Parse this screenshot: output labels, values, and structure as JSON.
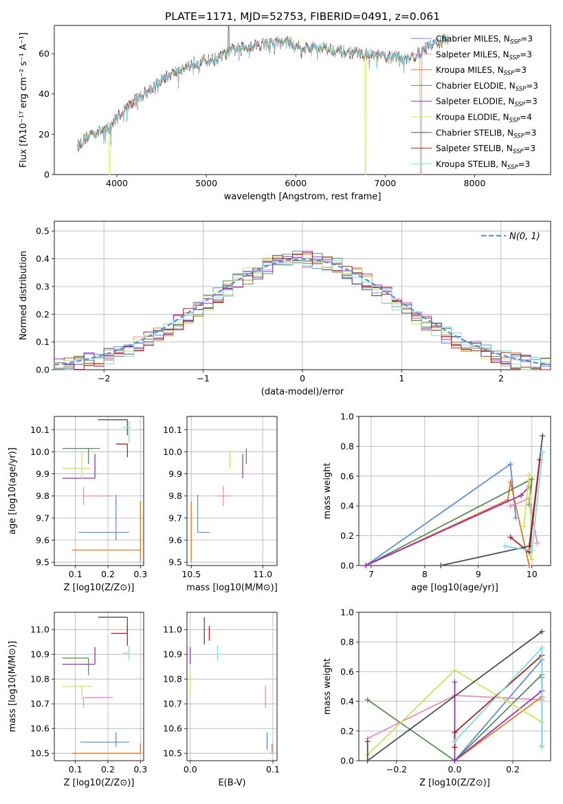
{
  "figure_title": "PLATE=1171, MJD=52753, FIBERID=0491, z=0.061",
  "series_colors": [
    "#5f8ed8",
    "#e48bbf",
    "#e2781f",
    "#5c8a5c",
    "#9a2fb8",
    "#cfe35a",
    "#4d4d4d",
    "#b01c1c",
    "#79dde8"
  ],
  "chart_data": [
    {
      "id": "spectrum",
      "type": "line",
      "title": "PLATE=1171, MJD=52753, FIBERID=0491, z=0.061",
      "xlabel": "wavelength [Angstrom, rest frame]",
      "ylabel": "Flux [fλ10⁻¹⁷ erg cm⁻² s⁻¹ A⁻¹]",
      "xlim": [
        3300,
        8850
      ],
      "ylim": [
        0,
        74
      ],
      "xticks": [
        4000,
        5000,
        6000,
        7000,
        8000
      ],
      "yticks": [
        0,
        20,
        40,
        60
      ],
      "grid": false,
      "legend_position": "right",
      "continuum_x": [
        3560,
        3700,
        3900,
        4100,
        4300,
        4500,
        4700,
        4900,
        5100,
        5300,
        5500,
        5700,
        5900,
        6100,
        6300,
        6500,
        6700,
        6900,
        7100,
        7300,
        7500,
        7700
      ],
      "continuum_y": [
        14,
        20,
        23,
        33,
        40,
        47,
        52,
        56,
        57,
        62,
        64,
        65,
        66,
        63,
        63,
        61,
        60,
        59,
        58,
        58,
        64,
        67
      ],
      "series": [
        {
          "name": "Chabrier MILES, N_SSP=3"
        },
        {
          "name": "Salpeter MILES, N_SSP=3"
        },
        {
          "name": "Kroupa MILES, N_SSP=3"
        },
        {
          "name": "Chabrier ELODIE, N_SSP=3"
        },
        {
          "name": "Salpeter ELODIE, N_SSP=3"
        },
        {
          "name": "Kroupa ELODIE, N_SSP=4"
        },
        {
          "name": "Chabrier STELIB, N_SSP=3"
        },
        {
          "name": "Salpeter STELIB, N_SSP=3"
        },
        {
          "name": "Kroupa STELIB, N_SSP=3"
        }
      ],
      "legend_labels": [
        [
          "Chabrier MILES, N",
          "SSP",
          "=3"
        ],
        [
          "Salpeter MILES, N",
          "SSP",
          "=3"
        ],
        [
          "Kroupa MILES, N",
          "SSP",
          "=3"
        ],
        [
          "Chabrier ELODIE, N",
          "SSP",
          "=3"
        ],
        [
          "Salpeter ELODIE, N",
          "SSP",
          "=3"
        ],
        [
          "Kroupa ELODIE, N",
          "SSP",
          "=4"
        ],
        [
          "Chabrier STELIB, N",
          "SSP",
          "=3"
        ],
        [
          "Salpeter STELIB, N",
          "SSP",
          "=3"
        ],
        [
          "Kroupa STELIB, N",
          "SSP",
          "=3"
        ]
      ]
    },
    {
      "id": "residuals",
      "type": "bar",
      "xlabel": "(data-model)/error",
      "ylabel": "Normed distribution",
      "xlim": [
        -2.5,
        2.5
      ],
      "ylim": [
        0,
        0.535
      ],
      "xticks": [
        -2,
        -1,
        0,
        1,
        2
      ],
      "xtick_labels": [
        "−2",
        "−1",
        "0",
        "1",
        "2"
      ],
      "yticks": [
        0,
        0.1,
        0.2,
        0.3,
        0.4,
        0.5
      ],
      "ytick_labels": [
        "0.0",
        "0.1",
        "0.2",
        "0.3",
        "0.4",
        "0.5"
      ],
      "grid": true,
      "bin_width": 0.1,
      "curve_label": "N(0, 1)",
      "legend_position": "upper right"
    },
    {
      "id": "age_vs_Z",
      "type": "scatter",
      "xlabel": "Z [log10(Z/Z⊙)]",
      "ylabel": "age [log10(age/yr)]",
      "xlim": [
        0.035,
        0.31
      ],
      "ylim": [
        9.485,
        10.16
      ],
      "xticks": [
        0.1,
        0.2,
        0.3
      ],
      "xtick_labels": [
        "0.1",
        "0.2",
        "0.3"
      ],
      "yticks": [
        9.5,
        9.6,
        9.7,
        9.8,
        9.9,
        10.0,
        10.1
      ],
      "ytick_labels": [
        "9.5",
        "9.6",
        "9.7",
        "9.8",
        "9.9",
        "10.0",
        "10.1"
      ],
      "grid": true,
      "points": [
        {
          "x": 0.225,
          "y": 9.635,
          "xerr": [
            0.115,
            0.04
          ],
          "yerr": [
            0.035,
            0.17
          ]
        },
        {
          "x": 0.125,
          "y": 9.8,
          "xerr": [
            0.0,
            0.09
          ],
          "yerr": [
            0.04,
            0.04
          ]
        },
        {
          "x": 0.3,
          "y": 9.555,
          "xerr": [
            0.21,
            0.0
          ],
          "yerr": [
            0.05,
            0.22
          ]
        },
        {
          "x": 0.14,
          "y": 10.015,
          "xerr": [
            0.08,
            0.035
          ],
          "yerr": [
            0.07,
            0.0
          ]
        },
        {
          "x": 0.16,
          "y": 9.88,
          "xerr": [
            0.1,
            0.0
          ],
          "yerr": [
            0.0,
            0.11
          ]
        },
        {
          "x": 0.12,
          "y": 9.925,
          "xerr": [
            0.06,
            0.025
          ],
          "yerr": [
            0.05,
            0.08
          ]
        },
        {
          "x": 0.26,
          "y": 10.145,
          "xerr": [
            0.09,
            0.0
          ],
          "yerr": [
            0.07,
            0.0
          ]
        },
        {
          "x": 0.26,
          "y": 10.035,
          "xerr": [
            0.035,
            0.0
          ],
          "yerr": [
            0.06,
            0.0
          ]
        },
        {
          "x": 0.265,
          "y": 10.11,
          "xerr": [
            0.02,
            0.005
          ],
          "yerr": [
            0.07,
            0.03
          ]
        }
      ]
    },
    {
      "id": "age_vs_mass",
      "type": "scatter",
      "xlabel": "mass [log10(M/M⊙)]",
      "xlim": [
        10.47,
        11.1
      ],
      "ylim": [
        9.485,
        10.16
      ],
      "xticks": [
        10.5,
        11.0
      ],
      "xtick_labels": [
        "10.5",
        "11.0"
      ],
      "yticks": [
        9.5,
        9.6,
        9.7,
        9.8,
        9.9,
        10.0,
        10.1
      ],
      "ytick_labels": [
        "9.5",
        "9.6",
        "9.7",
        "9.8",
        "9.9",
        "10.0",
        "10.1"
      ],
      "grid": true,
      "points": [
        {
          "x": 10.545,
          "y": 9.635,
          "xerr": [
            0.0,
            0.085
          ],
          "yerr": [
            0.0,
            0.17
          ]
        },
        {
          "x": 10.725,
          "y": 9.8,
          "xerr": [
            0.05,
            0.05
          ],
          "yerr": [
            0.045,
            0.045
          ]
        },
        {
          "x": 10.5,
          "y": 9.555,
          "xerr": [
            0.0,
            0.0
          ],
          "yerr": [
            0.05,
            0.22
          ]
        },
        {
          "x": 10.885,
          "y": 10.015,
          "xerr": [
            0.0,
            0.0
          ],
          "yerr": [
            0.07,
            0.0
          ]
        },
        {
          "x": 10.86,
          "y": 9.88,
          "xerr": [
            0.0,
            0.0
          ],
          "yerr": [
            0.0,
            0.11
          ]
        },
        {
          "x": 10.77,
          "y": 9.925,
          "xerr": [
            0.0,
            0.0
          ],
          "yerr": [
            0.0,
            0.08
          ]
        },
        {
          "x": 11.05,
          "y": 10.145,
          "xerr": [
            0.0,
            0.0
          ],
          "yerr": [
            0.0,
            0.0
          ]
        },
        {
          "x": 10.985,
          "y": 10.035,
          "xerr": [
            0.0,
            0.0
          ],
          "yerr": [
            0.0,
            0.0
          ]
        },
        {
          "x": 10.905,
          "y": 10.11,
          "xerr": [
            0.0,
            0.0
          ],
          "yerr": [
            0.0,
            0.0
          ]
        }
      ]
    },
    {
      "id": "weight_vs_age",
      "type": "line",
      "xlabel": "age  [log10(age/yr)]",
      "ylabel": "mass weight",
      "xlim": [
        6.77,
        10.35
      ],
      "ylim": [
        0,
        1.0
      ],
      "xticks": [
        7,
        8,
        9,
        10
      ],
      "xtick_labels": [
        "7",
        "8",
        "9",
        "10"
      ],
      "yticks": [
        0,
        0.2,
        0.4,
        0.6,
        0.8,
        1.0
      ],
      "ytick_labels": [
        "0.0",
        "0.2",
        "0.4",
        "0.6",
        "0.8",
        "1.0"
      ],
      "grid": true,
      "series": [
        {
          "x": [
            6.9,
            9.6,
            9.7
          ],
          "y": [
            0.0,
            0.68,
            0.32
          ]
        },
        {
          "x": [
            9.6,
            9.95,
            10.1
          ],
          "y": [
            0.4,
            0.45,
            0.15
          ]
        },
        {
          "x": [
            6.9,
            9.55,
            9.6,
            9.95
          ],
          "y": [
            0.0,
            0.44,
            0.56,
            0.0
          ]
        },
        {
          "x": [
            6.9,
            10.0,
            9.95
          ],
          "y": [
            0.0,
            0.58,
            0.41
          ]
        },
        {
          "x": [
            6.9,
            9.8,
            9.95
          ],
          "y": [
            0.0,
            0.47,
            0.53
          ]
        },
        {
          "x": [
            9.85,
            9.95,
            10.0,
            9.95
          ],
          "y": [
            0.26,
            0.61,
            0.04,
            0.09
          ]
        },
        {
          "x": [
            8.3,
            9.95,
            10.2
          ],
          "y": [
            0.0,
            0.13,
            0.87
          ]
        },
        {
          "x": [
            9.6,
            9.95,
            10.15
          ],
          "y": [
            0.19,
            0.09,
            0.71
          ]
        },
        {
          "x": [
            9.5,
            10.0,
            10.2
          ],
          "y": [
            0.13,
            0.1,
            0.76
          ]
        }
      ]
    },
    {
      "id": "mass_vs_Z",
      "type": "scatter",
      "xlabel": "Z [log10(Z/Z⊙)]",
      "ylabel": "mass [log10(M/M⊙)]",
      "xlim": [
        0.035,
        0.31
      ],
      "ylim": [
        10.47,
        11.07
      ],
      "xticks": [
        0.1,
        0.2,
        0.3
      ],
      "xtick_labels": [
        "0.1",
        "0.2",
        "0.3"
      ],
      "yticks": [
        10.5,
        10.6,
        10.7,
        10.8,
        10.9,
        11.0
      ],
      "ytick_labels": [
        "10.5",
        "10.6",
        "10.7",
        "10.8",
        "10.9",
        "11.0"
      ],
      "grid": true,
      "points": [
        {
          "x": 0.225,
          "y": 10.545,
          "xerr": [
            0.11,
            0.04
          ],
          "yerr": [
            0.02,
            0.04
          ]
        },
        {
          "x": 0.125,
          "y": 10.725,
          "xerr": [
            0.0,
            0.09
          ],
          "yerr": [
            0.04,
            0.0
          ]
        },
        {
          "x": 0.3,
          "y": 10.5,
          "xerr": [
            0.21,
            0.0
          ],
          "yerr": [
            0.0,
            0.04
          ]
        },
        {
          "x": 0.14,
          "y": 10.885,
          "xerr": [
            0.08,
            0.0
          ],
          "yerr": [
            0.07,
            0.0
          ]
        },
        {
          "x": 0.16,
          "y": 10.86,
          "xerr": [
            0.1,
            0.0
          ],
          "yerr": [
            0.0,
            0.07
          ]
        },
        {
          "x": 0.12,
          "y": 10.77,
          "xerr": [
            0.06,
            0.03
          ],
          "yerr": [
            0.05,
            0.0
          ]
        },
        {
          "x": 0.26,
          "y": 11.05,
          "xerr": [
            0.09,
            0.0
          ],
          "yerr": [
            0.06,
            0.0
          ]
        },
        {
          "x": 0.26,
          "y": 10.985,
          "xerr": [
            0.05,
            0.0
          ],
          "yerr": [
            0.05,
            0.03
          ]
        },
        {
          "x": 0.265,
          "y": 10.905,
          "xerr": [
            0.02,
            0.0
          ],
          "yerr": [
            0.03,
            0.03
          ]
        }
      ]
    },
    {
      "id": "mass_vs_ebv",
      "type": "scatter",
      "xlabel": "E(B-V)",
      "xlim": [
        -0.004,
        0.105
      ],
      "ylim": [
        10.47,
        11.07
      ],
      "xticks": [
        0.0,
        0.1
      ],
      "xtick_labels": [
        "0.0",
        "0.1"
      ],
      "yticks": [
        10.5,
        10.6,
        10.7,
        10.8,
        10.9,
        11.0
      ],
      "ytick_labels": [
        "10.5",
        "10.6",
        "10.7",
        "10.8",
        "10.9",
        "11.0"
      ],
      "grid": true,
      "points": [
        {
          "x": 0.093,
          "y": 10.545,
          "xerr": [
            0.0,
            0.0
          ],
          "yerr": [
            0.03,
            0.04
          ]
        },
        {
          "x": 0.091,
          "y": 10.725,
          "xerr": [
            0.0,
            0.0
          ],
          "yerr": [
            0.04,
            0.05
          ]
        },
        {
          "x": 0.099,
          "y": 10.5,
          "xerr": [
            0.0,
            0.0
          ],
          "yerr": [
            0.0,
            0.04
          ]
        },
        {
          "x": 0.0,
          "y": 10.885,
          "xerr": [
            0.0,
            0.0
          ],
          "yerr": [
            0.0,
            0.0
          ]
        },
        {
          "x": 0.0,
          "y": 10.86,
          "xerr": [
            0.0,
            0.0
          ],
          "yerr": [
            0.0,
            0.07
          ]
        },
        {
          "x": 0.0,
          "y": 10.77,
          "xerr": [
            0.0,
            0.0
          ],
          "yerr": [
            0.03,
            0.06
          ]
        },
        {
          "x": 0.017,
          "y": 11.0,
          "xerr": [
            0.0,
            0.0
          ],
          "yerr": [
            0.06,
            0.05
          ]
        },
        {
          "x": 0.023,
          "y": 10.985,
          "xerr": [
            0.0,
            0.0
          ],
          "yerr": [
            0.03,
            0.03
          ]
        },
        {
          "x": 0.033,
          "y": 10.905,
          "xerr": [
            0.0,
            0.0
          ],
          "yerr": [
            0.03,
            0.03
          ]
        }
      ]
    },
    {
      "id": "weight_vs_Z",
      "type": "line",
      "xlabel": "Z [log10(Z/Z⊙)]",
      "ylabel": "mass weight",
      "xlim": [
        -0.33,
        0.33
      ],
      "ylim": [
        0,
        1.0
      ],
      "xticks": [
        -0.2,
        0.0,
        0.2
      ],
      "xtick_labels": [
        "−0.2",
        "0.0",
        "0.2"
      ],
      "yticks": [
        0,
        0.2,
        0.4,
        0.6,
        0.8,
        1.0
      ],
      "ytick_labels": [
        "0.0",
        "0.2",
        "0.4",
        "0.6",
        "0.8",
        "1.0"
      ],
      "grid": true,
      "series": [
        {
          "x": [
            0.0,
            0.3,
            0.3
          ],
          "y": [
            0.0,
            0.68,
            0.1
          ]
        },
        {
          "x": [
            -0.3,
            0.0,
            0.3
          ],
          "y": [
            0.15,
            0.44,
            0.41
          ]
        },
        {
          "x": [
            0.0,
            0.3,
            0.3
          ],
          "y": [
            0.0,
            0.43,
            0.56
          ]
        },
        {
          "x": [
            -0.3,
            0.0,
            0.3
          ],
          "y": [
            0.41,
            0.0,
            0.58
          ]
        },
        {
          "x": [
            0.0,
            0.0,
            0.3
          ],
          "y": [
            0.53,
            0.0,
            0.47
          ]
        },
        {
          "x": [
            -0.3,
            0.0,
            0.3,
            0.3
          ],
          "y": [
            0.04,
            0.61,
            0.26,
            0.09
          ]
        },
        {
          "x": [
            -0.3,
            -0.3,
            0.3
          ],
          "y": [
            0.13,
            0.0,
            0.87
          ]
        },
        {
          "x": [
            0.0,
            0.0,
            0.3
          ],
          "y": [
            0.09,
            0.19,
            0.71
          ]
        },
        {
          "x": [
            0.0,
            0.3,
            0.3
          ],
          "y": [
            0.13,
            0.76,
            0.1
          ]
        }
      ]
    }
  ]
}
